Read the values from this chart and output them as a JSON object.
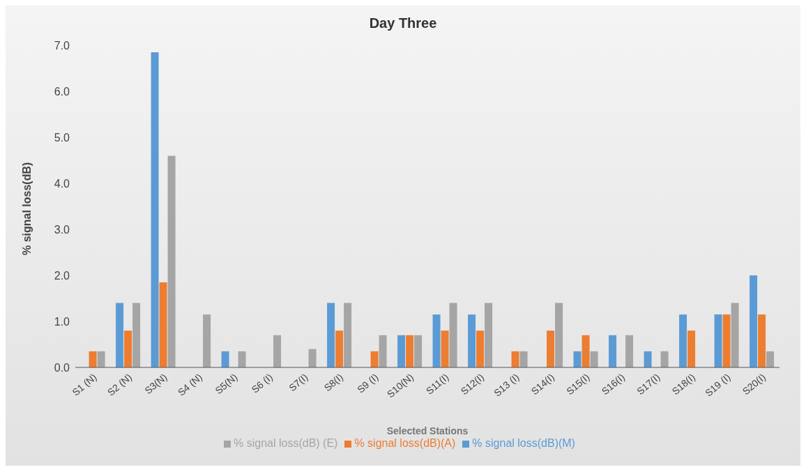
{
  "chart_data": {
    "type": "bar",
    "title": "Day Three",
    "xlabel": "Selected Stations",
    "ylabel": "% signal loss(dB)",
    "categories": [
      "S1 (N)",
      "S2 (N)",
      "S3(N)",
      "S4 (N)",
      "S5(N)",
      "S6 (I)",
      "S7(I)",
      "S8(I)",
      "S9 (I)",
      "S10(N)",
      "S11(I)",
      "S12(I)",
      "S13 (I)",
      "S14(I)",
      "S15(I)",
      "S16(I)",
      "S17(I)",
      "S18(I)",
      "S19 (I)",
      "S20(I)"
    ],
    "series": [
      {
        "name": "% signal loss(dB)(M)",
        "color": "#5b9bd5",
        "values": [
          0,
          1.4,
          6.85,
          0,
          0.35,
          0,
          0,
          1.4,
          0,
          0.7,
          1.15,
          1.15,
          0,
          0,
          0.35,
          0.7,
          0.35,
          1.15,
          1.15,
          2.0
        ]
      },
      {
        "name": "% signal loss(dB)(A)",
        "color": "#ed7d31",
        "values": [
          0.35,
          0.8,
          1.85,
          0,
          0,
          0,
          0,
          0.8,
          0.35,
          0.7,
          0.8,
          0.8,
          0.35,
          0.8,
          0.7,
          0,
          0,
          0.8,
          1.15,
          1.15
        ]
      },
      {
        "name": "% signal loss(dB) (E)",
        "color": "#a5a5a5",
        "values": [
          0.35,
          1.4,
          4.6,
          1.15,
          0.35,
          0.7,
          0.4,
          1.4,
          0.7,
          0.7,
          1.4,
          1.4,
          0.35,
          1.4,
          0.35,
          0.7,
          0.35,
          0,
          1.4,
          0.35
        ]
      }
    ],
    "ylim": [
      0,
      7
    ],
    "yticks": [
      {
        "value": 0,
        "label": "0.0"
      },
      {
        "value": 1,
        "label": "1.0"
      },
      {
        "value": 2,
        "label": "2.0"
      },
      {
        "value": 3,
        "label": "3.0"
      },
      {
        "value": 4,
        "label": "4.0"
      },
      {
        "value": 5,
        "label": "5.0"
      },
      {
        "value": 6,
        "label": "6.0"
      },
      {
        "value": 7,
        "label": "7.0"
      }
    ],
    "grid": false,
    "legend": "bottom"
  }
}
